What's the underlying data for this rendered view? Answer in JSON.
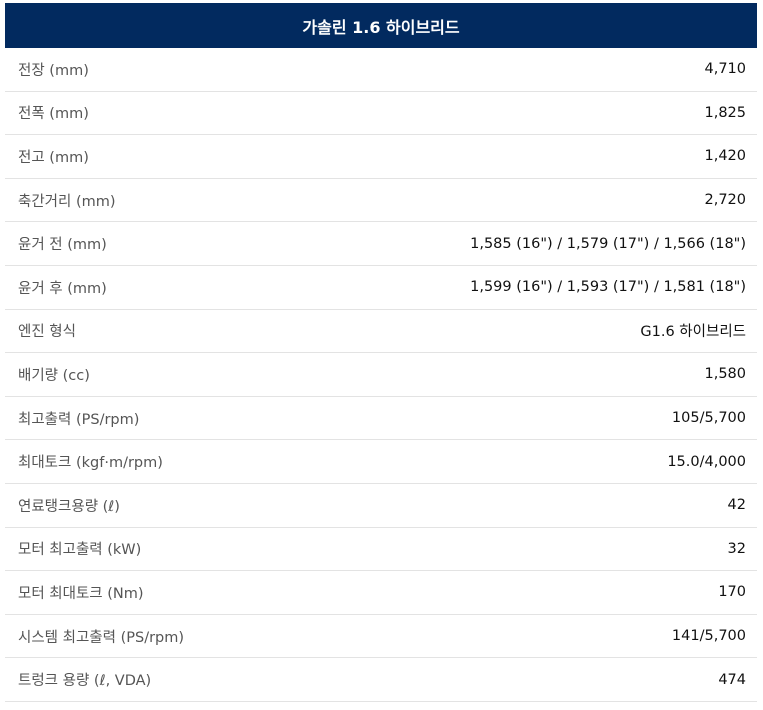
{
  "table": {
    "header": "가솔린 1.6 하이브리드",
    "rows": [
      {
        "label": "전장 (mm)",
        "value": "4,710"
      },
      {
        "label": "전폭 (mm)",
        "value": "1,825"
      },
      {
        "label": "전고 (mm)",
        "value": "1,420"
      },
      {
        "label": "축간거리 (mm)",
        "value": "2,720"
      },
      {
        "label": "윤거 전 (mm)",
        "value": "1,585 (16\") / 1,579 (17\") / 1,566 (18\")"
      },
      {
        "label": "윤거 후 (mm)",
        "value": "1,599 (16\") / 1,593 (17\") / 1,581 (18\")"
      },
      {
        "label": "엔진 형식",
        "value": "G1.6 하이브리드"
      },
      {
        "label": "배기량 (cc)",
        "value": "1,580"
      },
      {
        "label": "최고출력 (PS/rpm)",
        "value": "105/5,700"
      },
      {
        "label": "최대토크 (kgf·m/rpm)",
        "value": "15.0/4,000"
      },
      {
        "label": "연료탱크용량 (ℓ)",
        "value": "42"
      },
      {
        "label": "모터 최고출력 (kW)",
        "value": "32"
      },
      {
        "label": "모터 최대토크 (Nm)",
        "value": "170"
      },
      {
        "label": "시스템 최고출력 (PS/rpm)",
        "value": "141/5,700"
      },
      {
        "label": "트렁크 용량 (ℓ, VDA)",
        "value": "474"
      }
    ]
  }
}
